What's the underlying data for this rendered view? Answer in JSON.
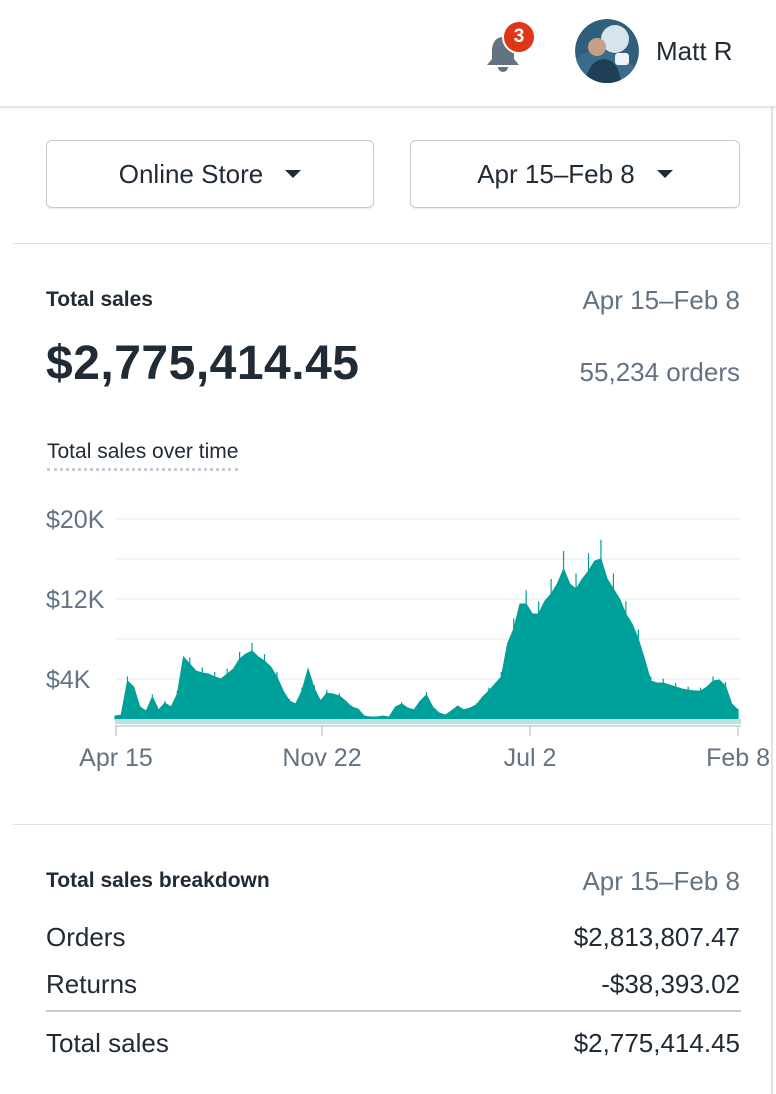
{
  "header": {
    "notifications_count": "3",
    "user_name": "Matt R",
    "icons": [
      "bell-icon",
      "avatar"
    ]
  },
  "filters": {
    "store_label": "Online Store",
    "date_range_label": "Apr 15–Feb 8"
  },
  "total_sales": {
    "title": "Total sales",
    "date_range": "Apr 15–Feb 8",
    "amount": "$2,775,414.45",
    "orders": "55,234 orders",
    "chart_title": "Total sales over time"
  },
  "chart_data": {
    "type": "area",
    "title": "Total sales over time",
    "y_tick_labels": [
      "$20K",
      "$12K",
      "$4K"
    ],
    "x_tick_labels": [
      "Apr 15",
      "Nov 22",
      "Jul 2",
      "Feb 8"
    ],
    "ylim": [
      0,
      20000
    ],
    "grid": true,
    "color": "#00a09a",
    "x": [
      0,
      3,
      6,
      9,
      12,
      15,
      18,
      21,
      24,
      27,
      30,
      33,
      36,
      39,
      42,
      45,
      48,
      51,
      54,
      57,
      60,
      63,
      66,
      69,
      72,
      75,
      78,
      81,
      84,
      87,
      90,
      93,
      96,
      99,
      102,
      105,
      108,
      111,
      114,
      117,
      120,
      123,
      126,
      129,
      132,
      135,
      138,
      141,
      144,
      147,
      150,
      153,
      156,
      159,
      162,
      165,
      168,
      171,
      174,
      177,
      180,
      183,
      186,
      189,
      192,
      195,
      198,
      201,
      204,
      207,
      210,
      213,
      216,
      219,
      222,
      225,
      228,
      231,
      234,
      237,
      240,
      243,
      246,
      249,
      252,
      255,
      258,
      261,
      264,
      267,
      270,
      273,
      276,
      279,
      282,
      285,
      288,
      291,
      294,
      297,
      300
    ],
    "values": [
      300,
      400,
      3800,
      3200,
      1200,
      800,
      2200,
      900,
      1600,
      1200,
      2500,
      6200,
      5500,
      4800,
      4600,
      4500,
      4200,
      4000,
      4500,
      5000,
      6000,
      6500,
      6800,
      6200,
      5800,
      5200,
      4200,
      2800,
      1800,
      1500,
      2800,
      5000,
      3000,
      1800,
      2600,
      2500,
      2300,
      1800,
      1200,
      1000,
      300,
      200,
      200,
      300,
      200,
      1200,
      1500,
      1100,
      900,
      1800,
      2400,
      1200,
      600,
      400,
      800,
      1300,
      900,
      1100,
      1400,
      2200,
      2800,
      3500,
      4200,
      7500,
      9000,
      11500,
      11500,
      10500,
      10500,
      11800,
      12500,
      13500,
      15000,
      13500,
      13000,
      14000,
      14800,
      15800,
      16000,
      14000,
      13000,
      12000,
      10500,
      9500,
      8000,
      6000,
      3800,
      3600,
      3600,
      3400,
      3200,
      3000,
      2900,
      2800,
      2800,
      3200,
      3800,
      3900,
      3300,
      1500,
      900
    ]
  },
  "breakdown": {
    "title": "Total sales breakdown",
    "date_range": "Apr 15–Feb 8",
    "rows": [
      {
        "label": "Orders",
        "value": "$2,813,807.47"
      },
      {
        "label": "Returns",
        "value": "-$38,393.02"
      },
      {
        "label": "Total sales",
        "value": "$2,775,414.45"
      }
    ]
  }
}
